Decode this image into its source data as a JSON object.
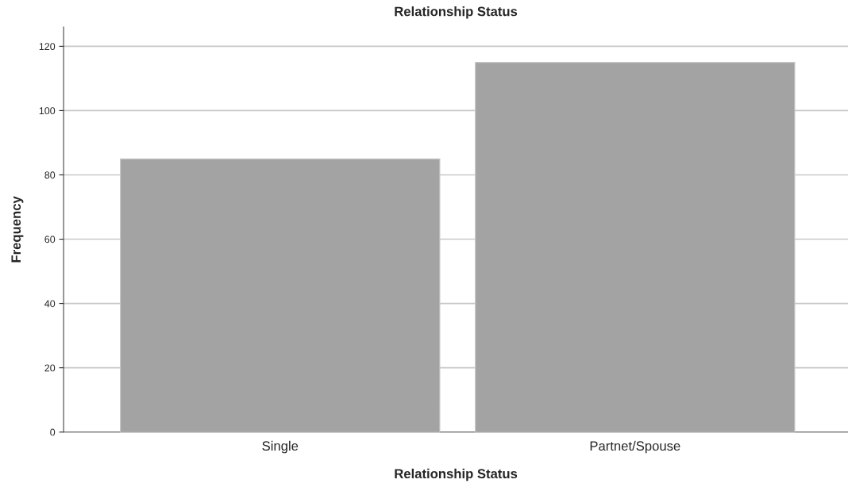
{
  "chart_data": {
    "type": "bar",
    "title": "Relationship Status",
    "xlabel": "Relationship Status",
    "ylabel": "Frequency",
    "categories": [
      "Single",
      "Partnet/Spouse"
    ],
    "values": [
      85,
      115
    ],
    "color": "#a3a3a3",
    "ylim": [
      0,
      126
    ],
    "yticks": [
      0,
      20,
      40,
      60,
      80,
      100,
      120
    ],
    "grid": "y",
    "legend": false
  }
}
